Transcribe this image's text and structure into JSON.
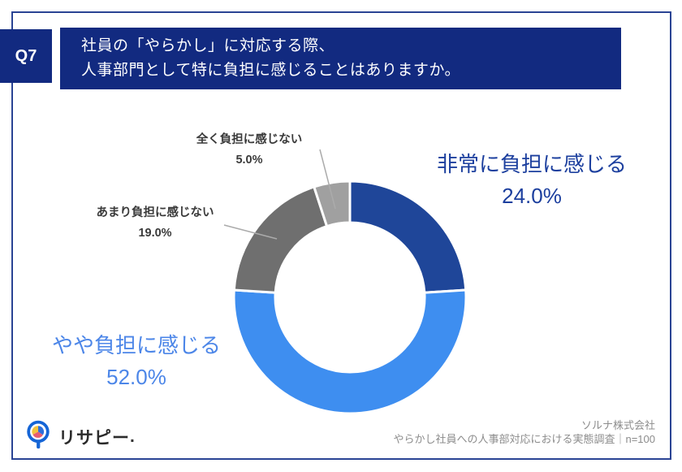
{
  "header": {
    "q_label": "Q7",
    "question_line1": "社員の「やらかし」に対応する際、",
    "question_line2": "人事部門として特に負担に感じることはありますか。"
  },
  "chart_data": {
    "type": "pie",
    "subtype": "donut",
    "title": "",
    "unit": "%",
    "start_angle": "top",
    "direction": "clockwise",
    "segments": [
      {
        "label": "非常に負担に感じる",
        "value": 24.0,
        "pct_label": "24.0%",
        "color": "#1F4699"
      },
      {
        "label": "やや負担に感じる",
        "value": 52.0,
        "pct_label": "52.0%",
        "color": "#3E8EF0"
      },
      {
        "label": "あまり負担に感じない",
        "value": 19.0,
        "pct_label": "19.0%",
        "color": "#6F6F6F"
      },
      {
        "label": "全く負担に感じない",
        "value": 5.0,
        "pct_label": "5.0%",
        "color": "#A0A0A0"
      }
    ]
  },
  "footer": {
    "logo_text": "リサピー",
    "logo_dot": ".",
    "source_line1": "ソルナ株式会社",
    "source_line2": "やらかし社員への人事部対応における実態調査｜n=100"
  },
  "colors": {
    "header_navy": "#122A80",
    "frame_navy": "#2A4494",
    "label_right_text": "#1C3F9E",
    "label_left_text": "#4C86E8",
    "small_label_text": "#3A3A3A",
    "leader_line": "#ABABAB",
    "source_text": "#8C8C8C",
    "logo_ring_blue": "#1565D6",
    "logo_pie_yellow": "#F2C23E",
    "logo_pie_pink": "#E55D72",
    "logo_pie_blue": "#2E6FDB"
  }
}
